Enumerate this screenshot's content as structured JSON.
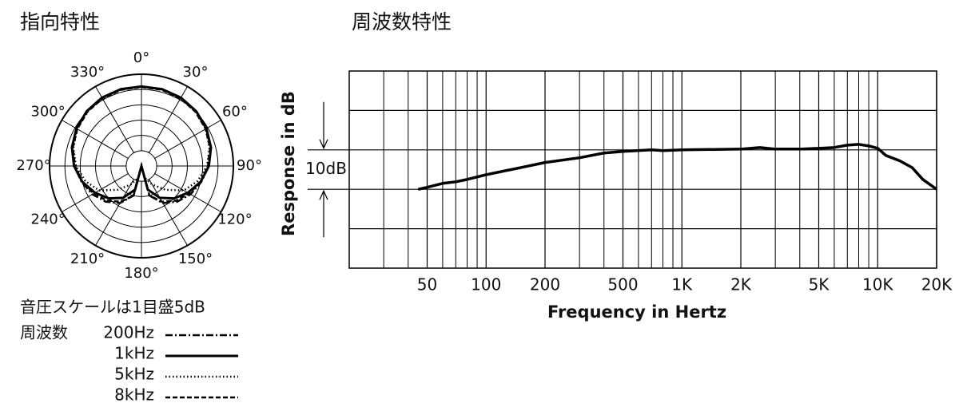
{
  "chart_data": [
    {
      "type": "polar",
      "title": "指向特性",
      "note": "音圧スケールは1目盛5dB",
      "legend_title": "周波数",
      "theta": [
        0,
        15,
        30,
        45,
        60,
        75,
        90,
        105,
        120,
        135,
        150,
        165,
        180,
        195,
        210,
        225,
        240,
        255,
        270,
        285,
        300,
        315,
        330,
        345,
        360
      ],
      "rlim": [
        -30,
        0
      ],
      "rticks": [
        -25,
        -20,
        -15,
        -10,
        -5,
        0
      ],
      "angle_ticks": [
        {
          "value": 0,
          "label": "0°"
        },
        {
          "value": 30,
          "label": "30°"
        },
        {
          "value": 60,
          "label": "60°"
        },
        {
          "value": 90,
          "label": "90°"
        },
        {
          "value": 120,
          "label": "120°"
        },
        {
          "value": 150,
          "label": "150°"
        },
        {
          "value": 180,
          "label": "180°"
        },
        {
          "value": 210,
          "label": "210°"
        },
        {
          "value": 240,
          "label": "240°"
        },
        {
          "value": 270,
          "label": "270°"
        },
        {
          "value": 300,
          "label": "300°"
        },
        {
          "value": 330,
          "label": "330°"
        }
      ],
      "series": [
        {
          "name": "200Hz",
          "color": "#000000",
          "dash": "dashdot",
          "values": [
            -4,
            -4,
            -4.3,
            -4.8,
            -5.6,
            -6.6,
            -8,
            -9.8,
            -11.5,
            -13.5,
            -16,
            -20,
            -30,
            -20,
            -16,
            -13.5,
            -11.5,
            -9.8,
            -8,
            -6.6,
            -5.6,
            -4.8,
            -4.3,
            -4,
            -4
          ]
        },
        {
          "name": "1kHz",
          "color": "#000000",
          "dash": "solid",
          "values": [
            -4,
            -4,
            -4.2,
            -4.7,
            -5.5,
            -6.5,
            -8,
            -10,
            -12.5,
            -15,
            -18,
            -22,
            -30,
            -22,
            -18,
            -15,
            -12.5,
            -10,
            -8,
            -6.5,
            -5.5,
            -4.7,
            -4.2,
            -4,
            -4
          ]
        },
        {
          "name": "5kHz",
          "color": "#000000",
          "dash": "dotted",
          "values": [
            -4,
            -4.1,
            -4.4,
            -5,
            -5.8,
            -7,
            -8.6,
            -11,
            -14,
            -19,
            -23,
            -26,
            -30,
            -26,
            -23,
            -19,
            -14,
            -11,
            -8.6,
            -7,
            -5.8,
            -5,
            -4.4,
            -4.1,
            -4
          ]
        },
        {
          "name": "8kHz",
          "color": "#000000",
          "dash": "dashed",
          "values": [
            -4.2,
            -4.2,
            -4.5,
            -5,
            -5.8,
            -6.8,
            -8.3,
            -10,
            -12,
            -14,
            -16.5,
            -20,
            -30,
            -20,
            -16.5,
            -14,
            -12,
            -10,
            -8.3,
            -6.8,
            -5.8,
            -5,
            -4.5,
            -4.2,
            -4.2
          ]
        }
      ]
    },
    {
      "type": "line",
      "title": "周波数特性",
      "x_label": "Frequency in Hertz",
      "y_label": "Response in dB",
      "annotation": "10dB",
      "xscale": "log",
      "xlim": [
        20,
        20000
      ],
      "xticks": [
        50,
        100,
        200,
        500,
        {
          "value": 1000,
          "label": "1K"
        },
        {
          "value": 2000,
          "label": "2K"
        },
        {
          "value": 5000,
          "label": "5K"
        },
        {
          "value": 10000,
          "label": "10K"
        },
        {
          "value": 20000,
          "label": "20K"
        }
      ],
      "xminor": [
        30,
        40,
        60,
        70,
        80,
        90,
        300,
        400,
        600,
        700,
        800,
        900,
        3000,
        4000,
        6000,
        7000,
        8000,
        9000
      ],
      "ylim": [
        -30,
        20
      ],
      "ygrid": [
        -20,
        -10,
        0,
        10
      ],
      "annotation_range": [
        -10,
        0
      ],
      "color": "#000000",
      "x": [
        45,
        50,
        60,
        70,
        80,
        100,
        150,
        200,
        300,
        400,
        500,
        700,
        800,
        1000,
        2000,
        2500,
        3000,
        4000,
        5000,
        6000,
        7000,
        8000,
        9000,
        10000,
        11000,
        13000,
        15000,
        17000,
        20000
      ],
      "values": [
        -10,
        -9.5,
        -8.5,
        -8.1,
        -7.5,
        -6.3,
        -4.5,
        -3.2,
        -2,
        -0.8,
        -0.4,
        0,
        -0.2,
        0,
        0.2,
        0.6,
        0.2,
        0.2,
        0.4,
        0.6,
        1.2,
        1.4,
        1,
        0.4,
        -1.4,
        -2.8,
        -4.5,
        -7.5,
        -10
      ]
    }
  ]
}
